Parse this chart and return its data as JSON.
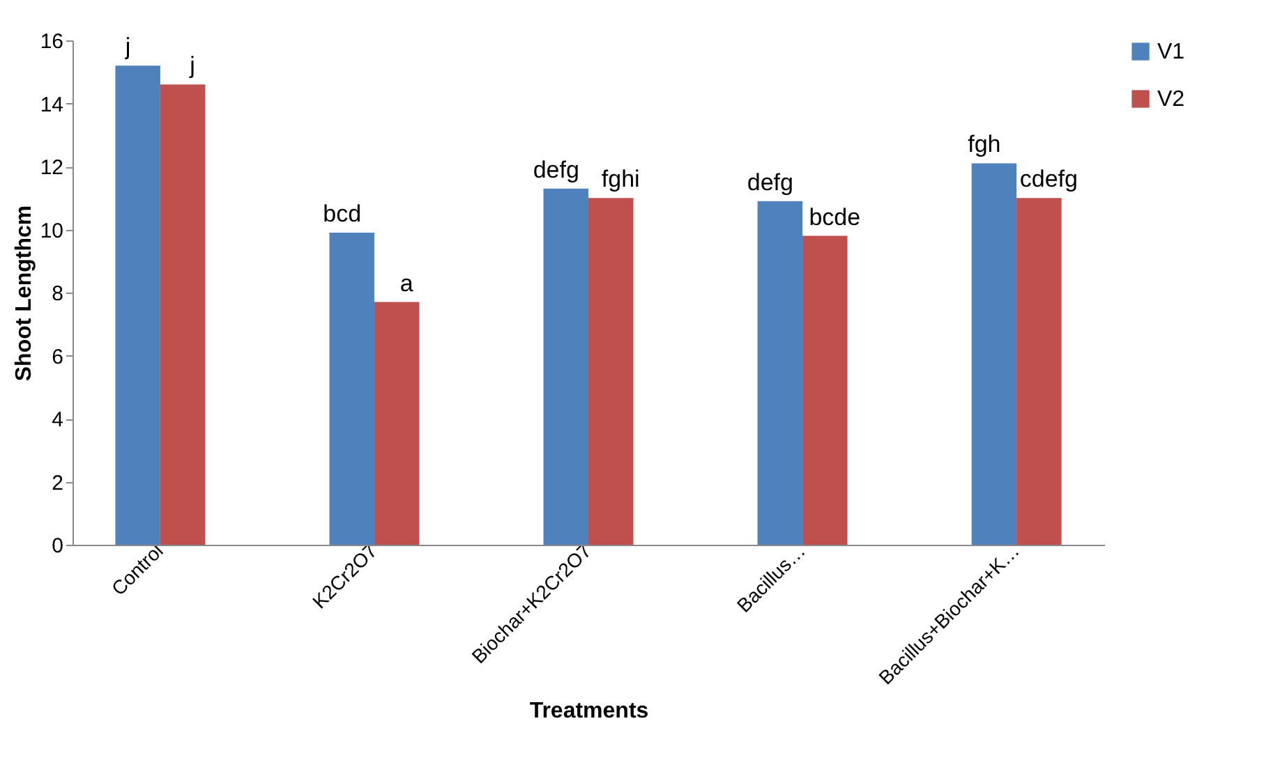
{
  "chart_data": {
    "type": "bar",
    "xlabel": "Treatments",
    "ylabel": "Shoot Lengthcm",
    "categories": [
      "Control",
      "K2Cr2O7",
      "Biochar+K2Cr2O7",
      "Bacillus…",
      "Bacillus+Biochar+K…"
    ],
    "series": [
      {
        "name": "V1",
        "color": "#4f81bd",
        "values": [
          15.2,
          9.9,
          11.3,
          10.9,
          12.1
        ],
        "value_labels": [
          "j",
          "bcd",
          "defg",
          "defg",
          "fgh"
        ]
      },
      {
        "name": "V2",
        "color": "#c0504d",
        "values": [
          14.6,
          7.7,
          11.0,
          9.8,
          11.0
        ],
        "value_labels": [
          "j",
          "a",
          "fghi",
          "bcde",
          "cdefg"
        ]
      }
    ],
    "ylim": [
      0,
      16
    ],
    "yticks": [
      0,
      2,
      4,
      6,
      8,
      10,
      12,
      14,
      16
    ],
    "grid": false,
    "legend": "right"
  }
}
